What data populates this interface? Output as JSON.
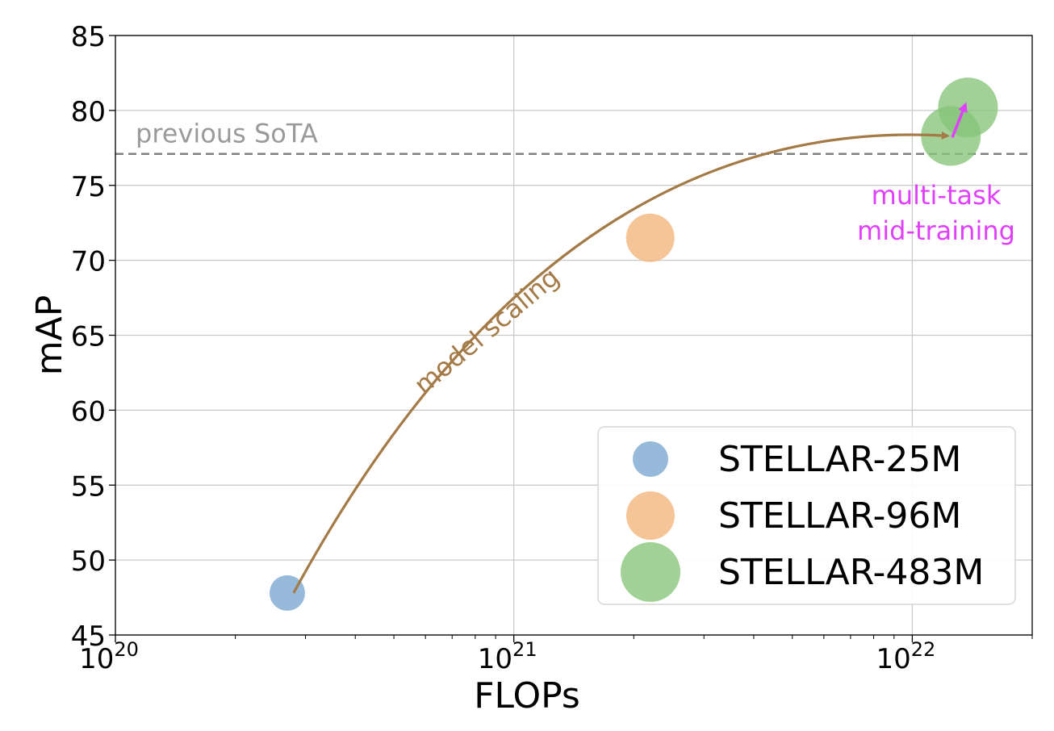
{
  "chart_data": {
    "type": "scatter",
    "xscale": "log",
    "xlabel": "FLOPs",
    "ylabel": "mAP",
    "xlim": [
      1e+20,
      2e+22
    ],
    "ylim": [
      45,
      85
    ],
    "x_ticks": [
      {
        "value": 1e+20,
        "base": "10",
        "exp": "20"
      },
      {
        "value": 1e+21,
        "base": "10",
        "exp": "21"
      },
      {
        "value": 1e+22,
        "base": "10",
        "exp": "22"
      }
    ],
    "y_ticks": [
      45,
      50,
      55,
      60,
      65,
      70,
      75,
      80,
      85
    ],
    "grid": true,
    "legend_position": "lower-right",
    "series": [
      {
        "name": "STELLAR-25M",
        "color": "#7aa6d0",
        "size": "small",
        "points": [
          {
            "x": 2.7e+20,
            "y": 47.8
          }
        ]
      },
      {
        "name": "STELLAR-96M",
        "color": "#f2b37a",
        "size": "medium",
        "points": [
          {
            "x": 2.2e+21,
            "y": 71.5
          }
        ]
      },
      {
        "name": "STELLAR-483M",
        "color": "#86c47a",
        "size": "large",
        "points": [
          {
            "x": 1.25e+22,
            "y": 78.3
          },
          {
            "x": 1.38e+22,
            "y": 80.2
          }
        ]
      }
    ],
    "reference_line": {
      "label": "previous SoTA",
      "y": 77.1,
      "color": "#7f7f7f"
    },
    "annotations": [
      {
        "id": "scaling",
        "text": "model scaling",
        "color": "#a47a47",
        "from": {
          "x": 2.8e+20,
          "y": 47.8
        },
        "to": {
          "x": 1.23e+22,
          "y": 78.3
        }
      },
      {
        "id": "multitask",
        "lines": [
          "multi-task",
          "mid-training"
        ],
        "color": "#e040fb",
        "from": {
          "x": 1.26e+22,
          "y": 78.2
        },
        "to": {
          "x": 1.36e+22,
          "y": 80.4
        }
      }
    ]
  }
}
